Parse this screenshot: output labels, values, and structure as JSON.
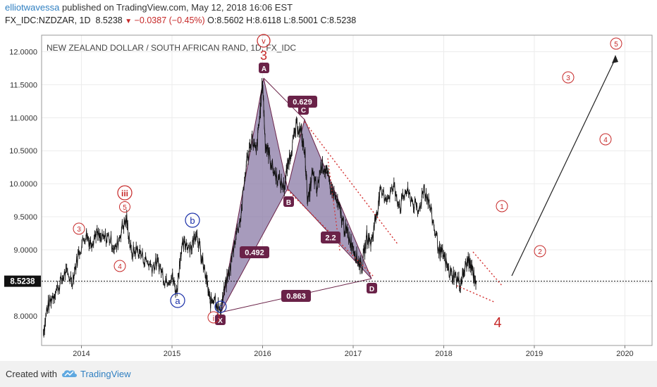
{
  "header": {
    "author": "elliotwavessa",
    "published_text": "published on TradingView.com, May 12, 2018 16:06 EST",
    "symbol_text": "FX_IDC:NZDZAR, 1D",
    "price": "8.5238",
    "change": "−0.0387 (−0.45%)",
    "ohlc": "O:8.5602 H:8.6118 L:8.5001 C:8.5238"
  },
  "footer": {
    "created_with": "Created with",
    "brand": "TradingView",
    "logo_icon": "tradingview-cloud-logo"
  },
  "colors": {
    "wave_red": "#c62828",
    "wave_blue": "#1a2fa8",
    "pattern": "#6a2248",
    "pattern_fill": "#8a7aa6",
    "price_line": "#111111"
  },
  "chart_data": {
    "type": "line",
    "title": "NEW ZEALAND DOLLAR / SOUTH AFRICAN RAND, 1D, FX_IDC",
    "xlabel": "",
    "ylabel": "",
    "x_ticks": [
      "2014",
      "2015",
      "2016",
      "2017",
      "2018",
      "2019",
      "2020"
    ],
    "y_ticks": [
      "8.0000",
      "8.5000",
      "9.0000",
      "9.5000",
      "10.0000",
      "10.5000",
      "11.0000",
      "11.5000",
      "12.0000"
    ],
    "ylim": [
      7.55,
      12.25
    ],
    "xlim": [
      2013.56,
      2020.3
    ],
    "last_price_label": "8.5238",
    "last_price": 8.5238,
    "series": [
      {
        "x": [
          2013.58,
          2013.62,
          2013.68,
          2013.75,
          2013.82,
          2013.9,
          2013.97,
          2014.05,
          2014.1,
          2014.16,
          2014.22,
          2014.3,
          2014.38,
          2014.45,
          2014.5,
          2014.55,
          2014.62,
          2014.7,
          2014.78,
          2014.85,
          2014.92,
          2015.0,
          2015.05,
          2015.1,
          2015.15,
          2015.22,
          2015.27,
          2015.32,
          2015.38,
          2015.42,
          2015.47,
          2015.53,
          2015.58,
          2015.64,
          2015.7,
          2015.76,
          2015.82,
          2015.88,
          2015.93,
          2015.97,
          2016.0,
          2016.03,
          2016.07,
          2016.12,
          2016.18,
          2016.24,
          2016.28,
          2016.33,
          2016.38,
          2016.43,
          2016.47,
          2016.5,
          2016.55,
          2016.6,
          2016.65,
          2016.7,
          2016.75,
          2016.8,
          2016.85,
          2016.9,
          2016.95,
          2017.0,
          2017.05,
          2017.1,
          2017.15,
          2017.2,
          2017.25,
          2017.3,
          2017.38,
          2017.45,
          2017.52,
          2017.58,
          2017.65,
          2017.72,
          2017.78,
          2017.84,
          2017.9,
          2017.96,
          2018.0,
          2018.06,
          2018.12,
          2018.18,
          2018.22,
          2018.27,
          2018.31,
          2018.36
        ],
        "values": [
          7.75,
          8.1,
          8.3,
          8.45,
          8.65,
          8.55,
          8.95,
          9.25,
          9.1,
          9.25,
          9.15,
          9.2,
          9.0,
          9.35,
          9.45,
          8.95,
          9.0,
          8.85,
          8.75,
          8.8,
          8.55,
          8.6,
          8.35,
          9.0,
          9.1,
          9.05,
          9.3,
          8.9,
          8.55,
          8.2,
          8.3,
          8.05,
          8.4,
          8.7,
          9.2,
          9.5,
          10.3,
          10.7,
          10.45,
          11.05,
          11.55,
          10.6,
          10.45,
          10.2,
          10.05,
          9.95,
          10.3,
          10.6,
          10.9,
          10.75,
          10.4,
          9.7,
          10.15,
          9.9,
          10.3,
          10.2,
          9.95,
          9.8,
          9.6,
          9.35,
          9.2,
          9.05,
          8.85,
          8.75,
          9.2,
          9.1,
          9.5,
          9.85,
          9.8,
          9.95,
          9.65,
          9.9,
          9.75,
          9.55,
          9.95,
          9.7,
          9.3,
          8.95,
          8.9,
          8.65,
          8.6,
          8.48,
          8.65,
          8.85,
          8.7,
          8.52
        ]
      }
    ]
  },
  "annotations": {
    "top_circle_label": "v",
    "red_big_3": "3",
    "red_big_4": "4",
    "abc_labels": {
      "A": "A",
      "B": "B",
      "C": "C",
      "D": "D",
      "X": "X"
    },
    "ratios": {
      "r1": "0.629",
      "r2": "0.492",
      "r3": "2.2",
      "r4": "0.863"
    },
    "red_circles_left": {
      "c3": "3",
      "c4": "4",
      "c5": "5",
      "iii": "iii",
      "i": "i"
    },
    "blue_circles": {
      "a": "a",
      "b": "b",
      "c": "c"
    },
    "future_circles": {
      "f1": "1",
      "f2": "2",
      "f3": "3",
      "f4": "4",
      "f5": "5"
    }
  }
}
